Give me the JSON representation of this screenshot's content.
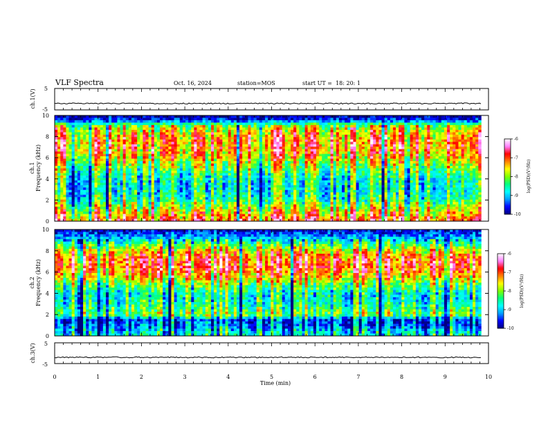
{
  "header": {
    "title": "VLF Spectra",
    "date": "Oct. 16, 2024",
    "station": "station=MOS",
    "start": "start UT =  18: 20: 1"
  },
  "chart_data": [
    {
      "type": "line",
      "name": "ch.1 waveform",
      "ylabel": "ch.1(V)",
      "ylim": [
        -5,
        5
      ],
      "y_ticks": [
        "5",
        "-5"
      ],
      "baseline_value": -2
    },
    {
      "type": "heatmap",
      "name": "ch.1 spectrogram",
      "ylabel_line1": "ch.1",
      "ylabel_line2": "Frequency (kHz)",
      "ylim": [
        0,
        10
      ],
      "y_ticks": [
        "0",
        "2",
        "4",
        "6",
        "8",
        "10"
      ],
      "colorbar": {
        "label": "log(PSD)(V²/Hz)",
        "range": [
          -10,
          -6
        ],
        "ticks": [
          "-6",
          "-7",
          "-8",
          "-9",
          "-10"
        ]
      },
      "profile_freq_khz": [
        0,
        0.5,
        1,
        1.5,
        2,
        2.5,
        3,
        3.5,
        4,
        4.5,
        5,
        5.5,
        6,
        6.5,
        7,
        7.5,
        8,
        8.5,
        9,
        9.5,
        10
      ],
      "profile_log_psd": [
        -6.8,
        -7.2,
        -7.5,
        -7.9,
        -8.3,
        -8.5,
        -8.6,
        -8.6,
        -8.5,
        -8.3,
        -8.0,
        -7.7,
        -7.4,
        -7.2,
        -7.1,
        -7.1,
        -7.2,
        -7.4,
        -7.8,
        -9.4,
        -9.9
      ]
    },
    {
      "type": "heatmap",
      "name": "ch.2 spectrogram",
      "ylabel_line1": "ch.2",
      "ylabel_line2": "Frequency (kHz)",
      "ylim": [
        0,
        10
      ],
      "y_ticks": [
        "0",
        "2",
        "4",
        "6",
        "8",
        "10"
      ],
      "colorbar": {
        "label": "log(PSD)(V²/Hz)",
        "range": [
          -10,
          -6
        ],
        "ticks": [
          "-6",
          "-7",
          "-8",
          "-9",
          "-10"
        ]
      },
      "profile_freq_khz": [
        0,
        0.5,
        1,
        1.5,
        2,
        2.5,
        3,
        3.5,
        4,
        4.5,
        5,
        5.5,
        6,
        6.5,
        7,
        7.5,
        8,
        8.5,
        9,
        9.5,
        10
      ],
      "profile_log_psd": [
        -8.6,
        -8.9,
        -9.3,
        -9.4,
        -8.0,
        -8.3,
        -8.5,
        -8.6,
        -8.6,
        -8.3,
        -7.9,
        -7.4,
        -7.1,
        -6.9,
        -6.9,
        -7.1,
        -7.5,
        -8.1,
        -8.8,
        -9.4,
        -9.7
      ]
    },
    {
      "type": "line",
      "name": "ch.3 waveform",
      "ylabel": "ch.3(V)",
      "ylim": [
        -5,
        5
      ],
      "y_ticks": [
        "5",
        "-5"
      ],
      "baseline_value": -2
    }
  ],
  "xaxis": {
    "label": "Time (min)",
    "range": [
      0,
      10
    ],
    "ticks": [
      "0",
      "1",
      "2",
      "3",
      "4",
      "5",
      "6",
      "7",
      "8",
      "9",
      "10"
    ],
    "data_end": 9.83
  },
  "colors": {
    "colormap": [
      "#000080",
      "#0000ff",
      "#00a0ff",
      "#00ffff",
      "#00ff80",
      "#80ff00",
      "#ffff00",
      "#ff8000",
      "#ff0000",
      "#ff80ff",
      "#ffffff"
    ]
  }
}
